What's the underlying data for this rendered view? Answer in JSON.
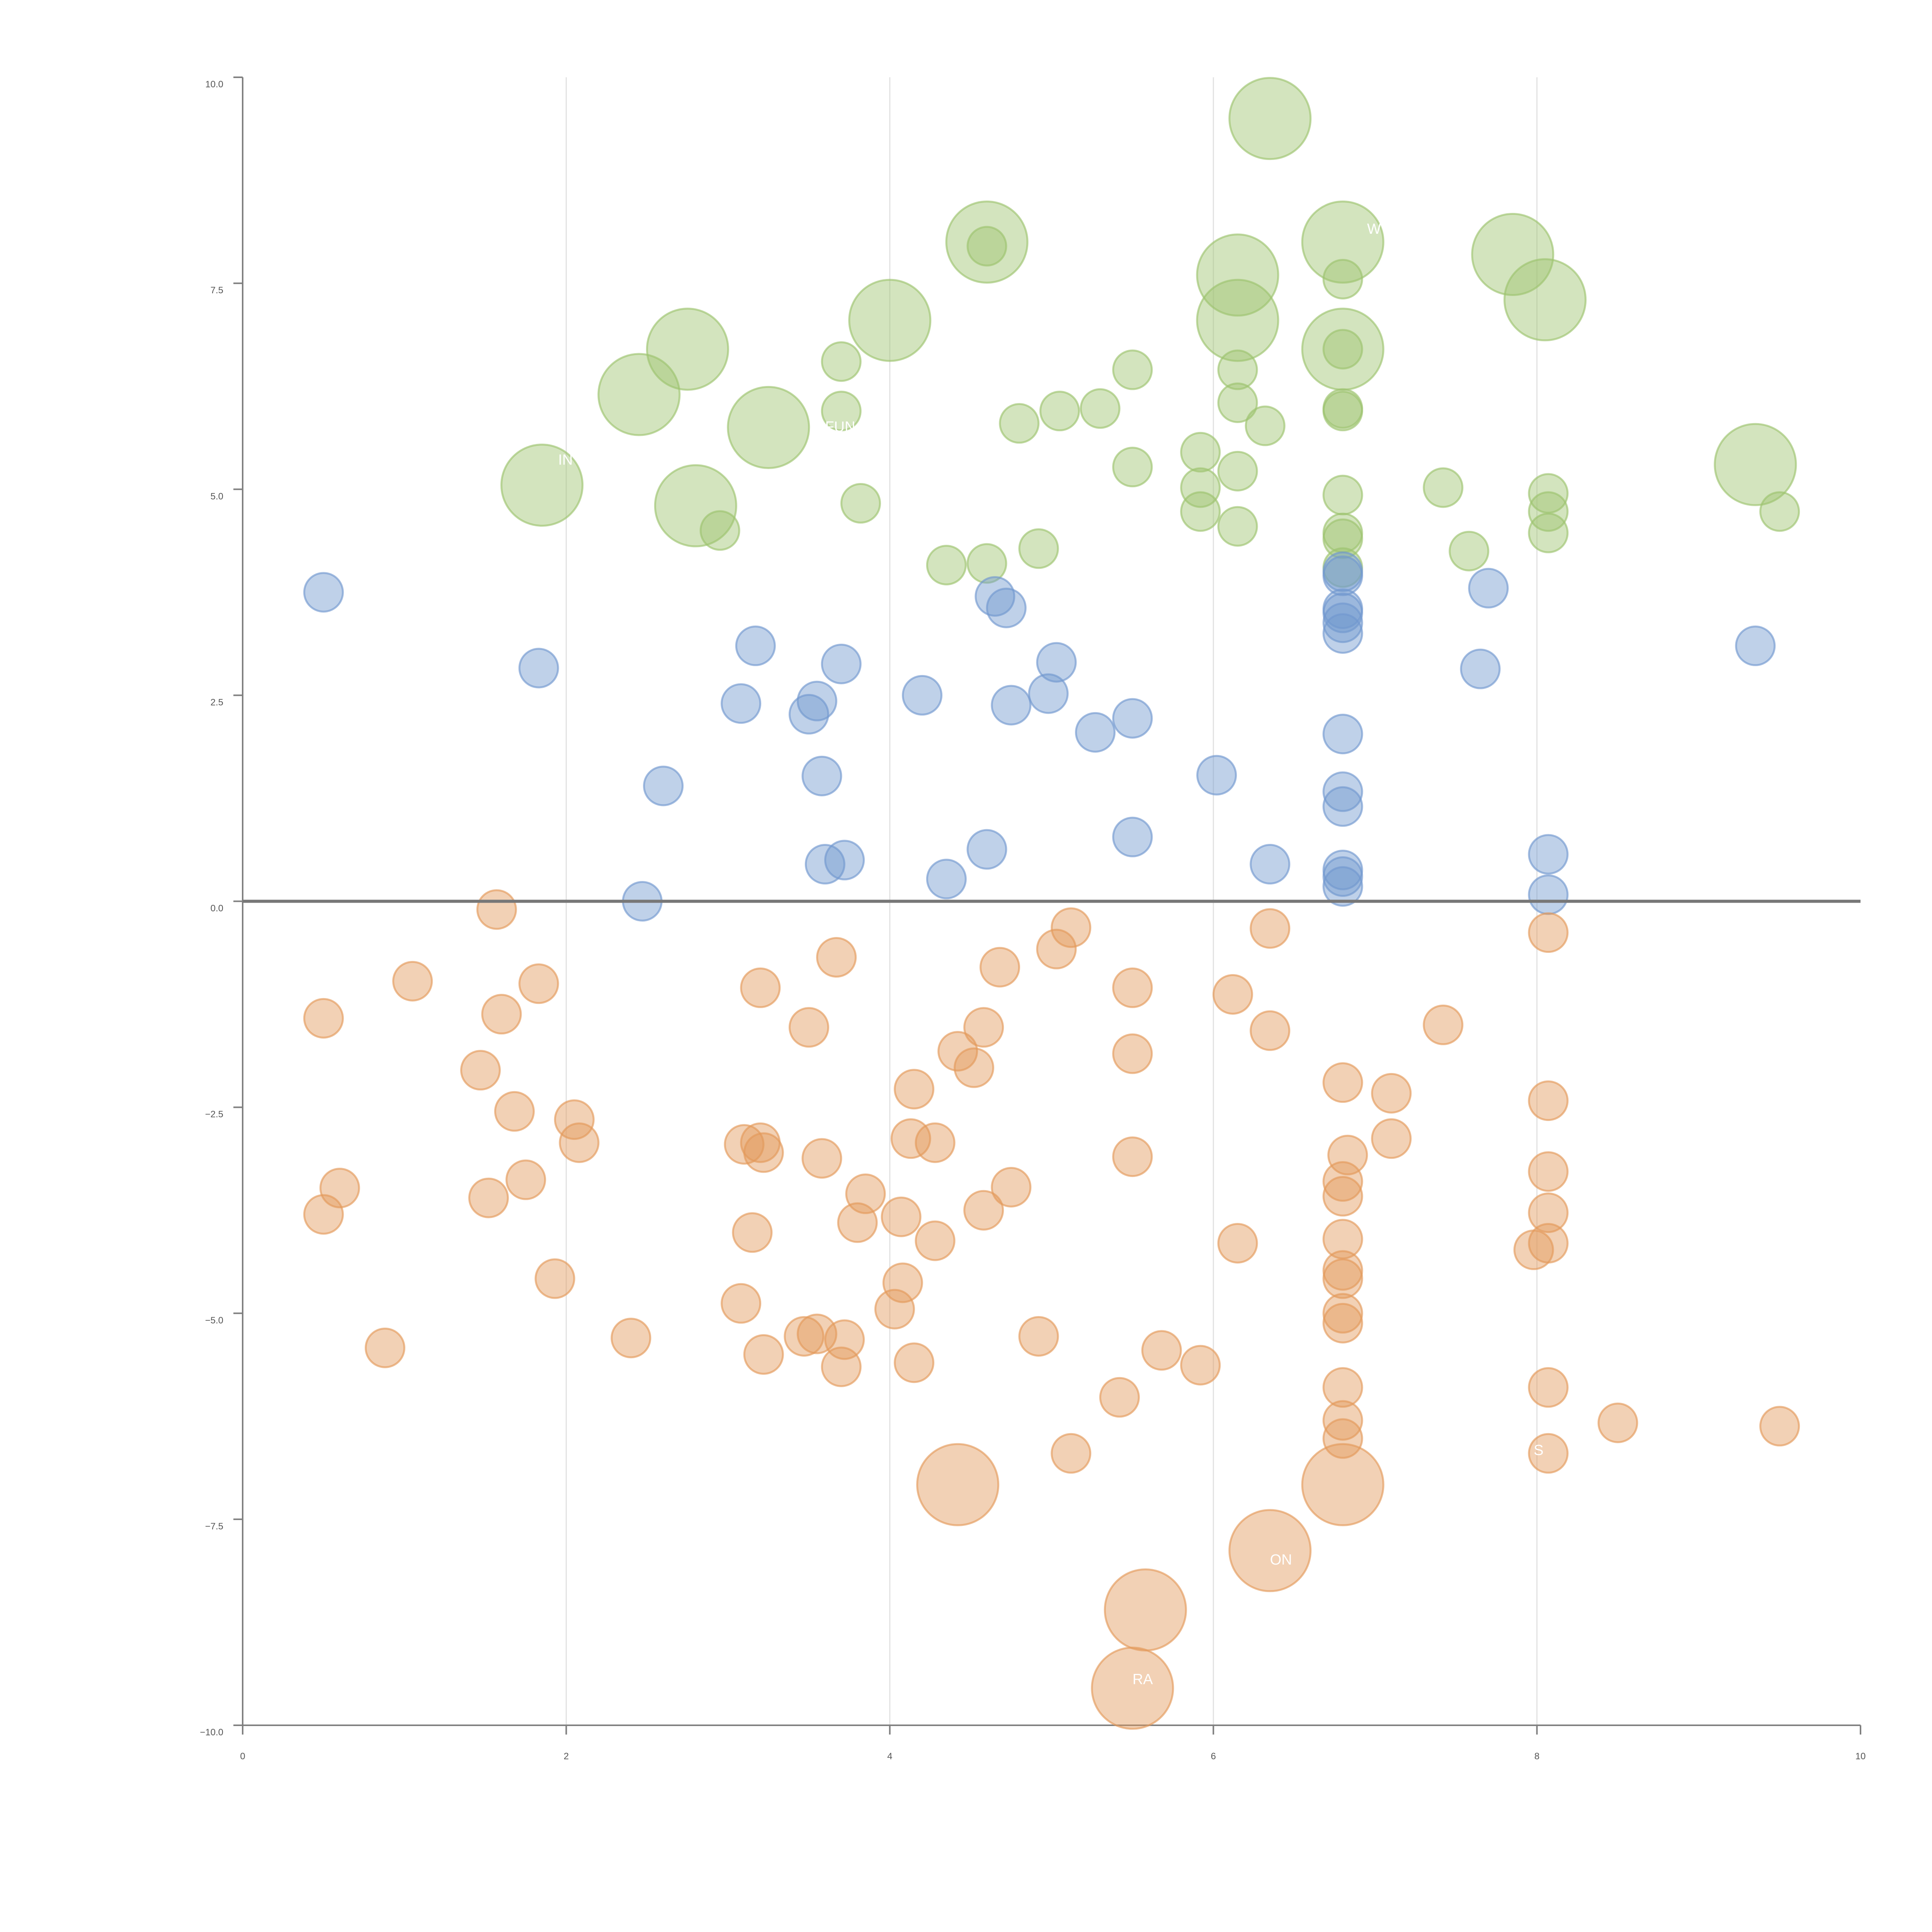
{
  "chart_data": {
    "type": "scatter",
    "title": "",
    "xlabel": "",
    "ylabel": "",
    "xlim": [
      0,
      10
    ],
    "ylim": [
      -10,
      10
    ],
    "x_ticks": [
      "0",
      "2",
      "4",
      "6",
      "8",
      "10"
    ],
    "y_ticks": [
      "10.0",
      "7.5",
      "5.0",
      "2.5",
      "0.0",
      "−2.5",
      "−5.0",
      "−7.5",
      "−10.0"
    ],
    "grid": "vertical lines at x = 2, 4, 6, 8",
    "reference_line_y": 0,
    "colors": {
      "green": "#9dc36e",
      "blue": "#7198cf",
      "orange": "#e3995b"
    },
    "series": [
      {
        "name": "green",
        "color": "#9dc36e",
        "points": [
          {
            "x": 6.35,
            "y": 9.5,
            "size": "large"
          },
          {
            "x": 4.6,
            "y": 8.0,
            "size": "large"
          },
          {
            "x": 4.6,
            "y": 7.95,
            "size": "small"
          },
          {
            "x": 6.8,
            "y": 8.0,
            "size": "large"
          },
          {
            "x": 6.15,
            "y": 7.6,
            "size": "large"
          },
          {
            "x": 7.85,
            "y": 7.85,
            "size": "large"
          },
          {
            "x": 8.05,
            "y": 7.3,
            "size": "large"
          },
          {
            "x": 6.15,
            "y": 7.05,
            "size": "large"
          },
          {
            "x": 4.0,
            "y": 7.05,
            "size": "large"
          },
          {
            "x": 2.75,
            "y": 6.7,
            "size": "large"
          },
          {
            "x": 6.8,
            "y": 6.7,
            "size": "large"
          },
          {
            "x": 2.45,
            "y": 6.15,
            "size": "large"
          },
          {
            "x": 3.25,
            "y": 5.75,
            "size": "large"
          },
          {
            "x": 1.85,
            "y": 5.05,
            "size": "large"
          },
          {
            "x": 2.8,
            "y": 4.8,
            "size": "large"
          },
          {
            "x": 9.35,
            "y": 5.3,
            "size": "large"
          },
          {
            "x": 6.8,
            "y": 7.55,
            "size": "small"
          },
          {
            "x": 3.7,
            "y": 6.55,
            "size": "small"
          },
          {
            "x": 5.5,
            "y": 6.45,
            "size": "small"
          },
          {
            "x": 6.15,
            "y": 6.45,
            "size": "small"
          },
          {
            "x": 6.8,
            "y": 6.7,
            "size": "small"
          },
          {
            "x": 6.15,
            "y": 6.05,
            "size": "small"
          },
          {
            "x": 3.7,
            "y": 5.95,
            "size": "small"
          },
          {
            "x": 5.05,
            "y": 5.95,
            "size": "small"
          },
          {
            "x": 5.3,
            "y": 5.98,
            "size": "small"
          },
          {
            "x": 6.8,
            "y": 5.95,
            "size": "small"
          },
          {
            "x": 6.8,
            "y": 5.98,
            "size": "small"
          },
          {
            "x": 4.8,
            "y": 5.8,
            "size": "small"
          },
          {
            "x": 6.32,
            "y": 5.77,
            "size": "small"
          },
          {
            "x": 5.92,
            "y": 5.45,
            "size": "small"
          },
          {
            "x": 5.5,
            "y": 5.27,
            "size": "small"
          },
          {
            "x": 6.15,
            "y": 5.22,
            "size": "small"
          },
          {
            "x": 5.92,
            "y": 5.02,
            "size": "small"
          },
          {
            "x": 7.42,
            "y": 5.02,
            "size": "small"
          },
          {
            "x": 6.8,
            "y": 4.93,
            "size": "small"
          },
          {
            "x": 8.07,
            "y": 4.95,
            "size": "small"
          },
          {
            "x": 3.82,
            "y": 4.83,
            "size": "small"
          },
          {
            "x": 5.92,
            "y": 4.73,
            "size": "small"
          },
          {
            "x": 8.07,
            "y": 4.73,
            "size": "small"
          },
          {
            "x": 9.5,
            "y": 4.73,
            "size": "small"
          },
          {
            "x": 6.15,
            "y": 4.55,
            "size": "small"
          },
          {
            "x": 2.95,
            "y": 4.5,
            "size": "small"
          },
          {
            "x": 6.8,
            "y": 4.47,
            "size": "small"
          },
          {
            "x": 8.07,
            "y": 4.47,
            "size": "small"
          },
          {
            "x": 6.8,
            "y": 4.4,
            "size": "small"
          },
          {
            "x": 4.92,
            "y": 4.28,
            "size": "small"
          },
          {
            "x": 7.58,
            "y": 4.25,
            "size": "small"
          },
          {
            "x": 4.35,
            "y": 4.08,
            "size": "small"
          },
          {
            "x": 4.6,
            "y": 4.1,
            "size": "small"
          },
          {
            "x": 6.8,
            "y": 4.05,
            "size": "small"
          }
        ]
      },
      {
        "name": "blue",
        "color": "#7198cf",
        "points": [
          {
            "x": 0.5,
            "y": 3.75
          },
          {
            "x": 1.83,
            "y": 2.83
          },
          {
            "x": 3.17,
            "y": 3.1
          },
          {
            "x": 3.08,
            "y": 2.4
          },
          {
            "x": 3.55,
            "y": 2.43
          },
          {
            "x": 3.5,
            "y": 2.27
          },
          {
            "x": 3.7,
            "y": 2.88
          },
          {
            "x": 2.6,
            "y": 1.4
          },
          {
            "x": 3.58,
            "y": 1.52
          },
          {
            "x": 2.47,
            "y": 0.0
          },
          {
            "x": 3.6,
            "y": 0.45
          },
          {
            "x": 3.72,
            "y": 0.5
          },
          {
            "x": 4.2,
            "y": 2.5
          },
          {
            "x": 4.35,
            "y": 0.27
          },
          {
            "x": 4.6,
            "y": 0.63
          },
          {
            "x": 4.65,
            "y": 3.7
          },
          {
            "x": 4.72,
            "y": 3.56
          },
          {
            "x": 4.75,
            "y": 2.38
          },
          {
            "x": 4.98,
            "y": 2.52
          },
          {
            "x": 5.03,
            "y": 2.9
          },
          {
            "x": 5.27,
            "y": 2.05
          },
          {
            "x": 5.5,
            "y": 2.22
          },
          {
            "x": 5.5,
            "y": 0.78
          },
          {
            "x": 6.02,
            "y": 1.53
          },
          {
            "x": 6.35,
            "y": 0.45
          },
          {
            "x": 6.8,
            "y": 4.0
          },
          {
            "x": 6.8,
            "y": 3.95
          },
          {
            "x": 6.8,
            "y": 3.55
          },
          {
            "x": 6.8,
            "y": 3.5
          },
          {
            "x": 6.8,
            "y": 3.38
          },
          {
            "x": 6.8,
            "y": 3.25
          },
          {
            "x": 6.8,
            "y": 2.03
          },
          {
            "x": 6.8,
            "y": 1.33
          },
          {
            "x": 6.8,
            "y": 1.15
          },
          {
            "x": 6.8,
            "y": 0.38
          },
          {
            "x": 6.8,
            "y": 0.3
          },
          {
            "x": 6.8,
            "y": 0.18
          },
          {
            "x": 7.65,
            "y": 2.82
          },
          {
            "x": 7.7,
            "y": 3.8
          },
          {
            "x": 8.07,
            "y": 0.57
          },
          {
            "x": 8.07,
            "y": 0.08
          },
          {
            "x": 9.35,
            "y": 3.1
          }
        ]
      },
      {
        "name": "orange",
        "color": "#e3995b",
        "points": [
          {
            "x": 1.57,
            "y": -0.1,
            "size": "small"
          },
          {
            "x": 1.05,
            "y": -0.97,
            "size": "small"
          },
          {
            "x": 1.83,
            "y": -1.0,
            "size": "small"
          },
          {
            "x": 0.5,
            "y": -1.42,
            "size": "small"
          },
          {
            "x": 1.6,
            "y": -1.37,
            "size": "small"
          },
          {
            "x": 1.47,
            "y": -2.05,
            "size": "small"
          },
          {
            "x": 1.68,
            "y": -2.55,
            "size": "small"
          },
          {
            "x": 2.05,
            "y": -2.65,
            "size": "small"
          },
          {
            "x": 2.08,
            "y": -2.93,
            "size": "small"
          },
          {
            "x": 0.6,
            "y": -3.48,
            "size": "small"
          },
          {
            "x": 0.5,
            "y": -3.8,
            "size": "small"
          },
          {
            "x": 1.52,
            "y": -3.6,
            "size": "small"
          },
          {
            "x": 1.75,
            "y": -3.38,
            "size": "small"
          },
          {
            "x": 1.93,
            "y": -4.58,
            "size": "small"
          },
          {
            "x": 0.88,
            "y": -5.42,
            "size": "small"
          },
          {
            "x": 2.4,
            "y": -5.3,
            "size": "small"
          },
          {
            "x": 3.2,
            "y": -1.05,
            "size": "small"
          },
          {
            "x": 3.5,
            "y": -1.53,
            "size": "small"
          },
          {
            "x": 3.67,
            "y": -0.68,
            "size": "small"
          },
          {
            "x": 3.1,
            "y": -2.95,
            "size": "small"
          },
          {
            "x": 3.2,
            "y": -2.93,
            "size": "small"
          },
          {
            "x": 3.22,
            "y": -3.05,
            "size": "small"
          },
          {
            "x": 3.58,
            "y": -3.12,
            "size": "small"
          },
          {
            "x": 3.15,
            "y": -4.02,
            "size": "small"
          },
          {
            "x": 3.08,
            "y": -4.88,
            "size": "small"
          },
          {
            "x": 3.22,
            "y": -5.5,
            "size": "small"
          },
          {
            "x": 3.47,
            "y": -5.28,
            "size": "small"
          },
          {
            "x": 3.55,
            "y": -5.25,
            "size": "small"
          },
          {
            "x": 3.72,
            "y": -5.32,
            "size": "small"
          },
          {
            "x": 3.7,
            "y": -5.65,
            "size": "small"
          },
          {
            "x": 3.8,
            "y": -3.9,
            "size": "small"
          },
          {
            "x": 3.85,
            "y": -3.55,
            "size": "small"
          },
          {
            "x": 4.07,
            "y": -3.83,
            "size": "small"
          },
          {
            "x": 4.13,
            "y": -2.88,
            "size": "small"
          },
          {
            "x": 4.15,
            "y": -2.28,
            "size": "small"
          },
          {
            "x": 4.28,
            "y": -2.93,
            "size": "small"
          },
          {
            "x": 4.28,
            "y": -4.12,
            "size": "small"
          },
          {
            "x": 4.08,
            "y": -4.63,
            "size": "small"
          },
          {
            "x": 4.03,
            "y": -4.95,
            "size": "small"
          },
          {
            "x": 4.15,
            "y": -5.6,
            "size": "small"
          },
          {
            "x": 4.42,
            "y": -1.82,
            "size": "small"
          },
          {
            "x": 4.52,
            "y": -2.02,
            "size": "small"
          },
          {
            "x": 4.58,
            "y": -1.53,
            "size": "small"
          },
          {
            "x": 4.58,
            "y": -3.75,
            "size": "small"
          },
          {
            "x": 4.68,
            "y": -0.8,
            "size": "small"
          },
          {
            "x": 4.75,
            "y": -3.47,
            "size": "small"
          },
          {
            "x": 4.92,
            "y": -5.28,
            "size": "small"
          },
          {
            "x": 5.03,
            "y": -0.58,
            "size": "small"
          },
          {
            "x": 5.12,
            "y": -0.32,
            "size": "small"
          },
          {
            "x": 5.12,
            "y": -6.7,
            "size": "small"
          },
          {
            "x": 5.42,
            "y": -6.02,
            "size": "small"
          },
          {
            "x": 5.5,
            "y": -1.05,
            "size": "small"
          },
          {
            "x": 5.5,
            "y": -1.85,
            "size": "small"
          },
          {
            "x": 5.5,
            "y": -3.1,
            "size": "small"
          },
          {
            "x": 5.68,
            "y": -5.45,
            "size": "small"
          },
          {
            "x": 5.92,
            "y": -5.63,
            "size": "small"
          },
          {
            "x": 6.12,
            "y": -1.13,
            "size": "small"
          },
          {
            "x": 6.15,
            "y": -4.15,
            "size": "small"
          },
          {
            "x": 6.35,
            "y": -0.33,
            "size": "small"
          },
          {
            "x": 6.35,
            "y": -1.57,
            "size": "small"
          },
          {
            "x": 6.8,
            "y": -2.2,
            "size": "small"
          },
          {
            "x": 6.83,
            "y": -3.08,
            "size": "small"
          },
          {
            "x": 6.8,
            "y": -3.4,
            "size": "small"
          },
          {
            "x": 6.8,
            "y": -3.58,
            "size": "small"
          },
          {
            "x": 6.8,
            "y": -4.1,
            "size": "small"
          },
          {
            "x": 6.8,
            "y": -4.48,
            "size": "small"
          },
          {
            "x": 6.8,
            "y": -4.58,
            "size": "small"
          },
          {
            "x": 6.8,
            "y": -5.0,
            "size": "small"
          },
          {
            "x": 6.8,
            "y": -5.12,
            "size": "small"
          },
          {
            "x": 6.8,
            "y": -5.9,
            "size": "small"
          },
          {
            "x": 6.8,
            "y": -6.3,
            "size": "small"
          },
          {
            "x": 6.8,
            "y": -6.52,
            "size": "small"
          },
          {
            "x": 7.1,
            "y": -2.33,
            "size": "small"
          },
          {
            "x": 7.1,
            "y": -2.88,
            "size": "small"
          },
          {
            "x": 7.42,
            "y": -1.5,
            "size": "small"
          },
          {
            "x": 8.07,
            "y": -0.38,
            "size": "small"
          },
          {
            "x": 8.07,
            "y": -2.42,
            "size": "small"
          },
          {
            "x": 8.07,
            "y": -3.28,
            "size": "small"
          },
          {
            "x": 8.07,
            "y": -3.78,
            "size": "small"
          },
          {
            "x": 8.07,
            "y": -4.15,
            "size": "small"
          },
          {
            "x": 7.98,
            "y": -4.23,
            "size": "small"
          },
          {
            "x": 8.07,
            "y": -5.9,
            "size": "small"
          },
          {
            "x": 8.07,
            "y": -6.7,
            "size": "small"
          },
          {
            "x": 8.5,
            "y": -6.33,
            "size": "small"
          },
          {
            "x": 9.5,
            "y": -6.37,
            "size": "small"
          },
          {
            "x": 4.42,
            "y": -7.08,
            "size": "large"
          },
          {
            "x": 6.8,
            "y": -7.08,
            "size": "large"
          },
          {
            "x": 6.35,
            "y": -7.88,
            "size": "large"
          },
          {
            "x": 5.58,
            "y": -8.6,
            "size": "large"
          },
          {
            "x": 5.5,
            "y": -9.55,
            "size": "large"
          }
        ]
      }
    ],
    "annotations": [
      {
        "text": "W",
        "x": 6.95,
        "y": 8.1
      },
      {
        "text": "IN",
        "x": 1.95,
        "y": 5.3
      },
      {
        "text": "FUN",
        "x": 3.6,
        "y": 5.7
      },
      {
        "text": "ON",
        "x": 6.35,
        "y": -8.05
      },
      {
        "text": "RA",
        "x": 5.5,
        "y": -9.5
      },
      {
        "text": "S",
        "x": 7.98,
        "y": -6.72
      }
    ]
  }
}
